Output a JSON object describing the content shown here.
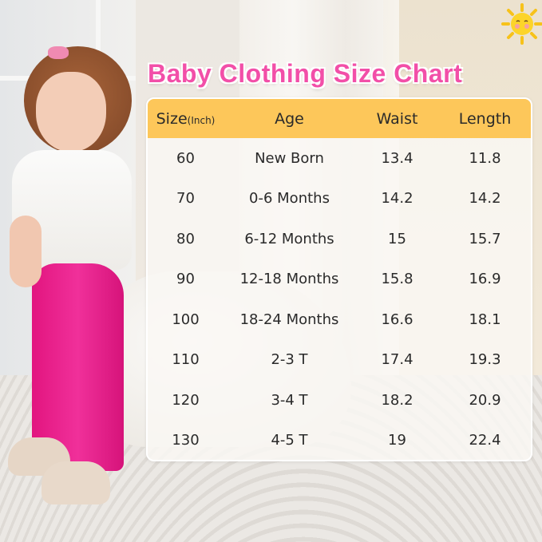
{
  "title": "Baby Clothing Size Chart",
  "colors": {
    "title": "#f24fa8",
    "header_bg": "#fdc75a",
    "leggings": "#ec2a93"
  },
  "icons": {
    "decoration": "sun-icon"
  },
  "table": {
    "headers": {
      "size": "Size",
      "size_unit": "(Inch)",
      "age": "Age",
      "waist": "Waist",
      "length": "Length"
    },
    "rows": [
      {
        "size": "60",
        "age": "New Born",
        "waist": "13.4",
        "length": "11.8"
      },
      {
        "size": "70",
        "age": "0-6 Months",
        "waist": "14.2",
        "length": "14.2"
      },
      {
        "size": "80",
        "age": "6-12 Months",
        "waist": "15",
        "length": "15.7"
      },
      {
        "size": "90",
        "age": "12-18 Months",
        "waist": "15.8",
        "length": "16.9"
      },
      {
        "size": "100",
        "age": "18-24 Months",
        "waist": "16.6",
        "length": "18.1"
      },
      {
        "size": "110",
        "age": "2-3 T",
        "waist": "17.4",
        "length": "19.3"
      },
      {
        "size": "120",
        "age": "3-4 T",
        "waist": "18.2",
        "length": "20.9"
      },
      {
        "size": "130",
        "age": "4-5 T",
        "waist": "19",
        "length": "22.4"
      }
    ]
  }
}
